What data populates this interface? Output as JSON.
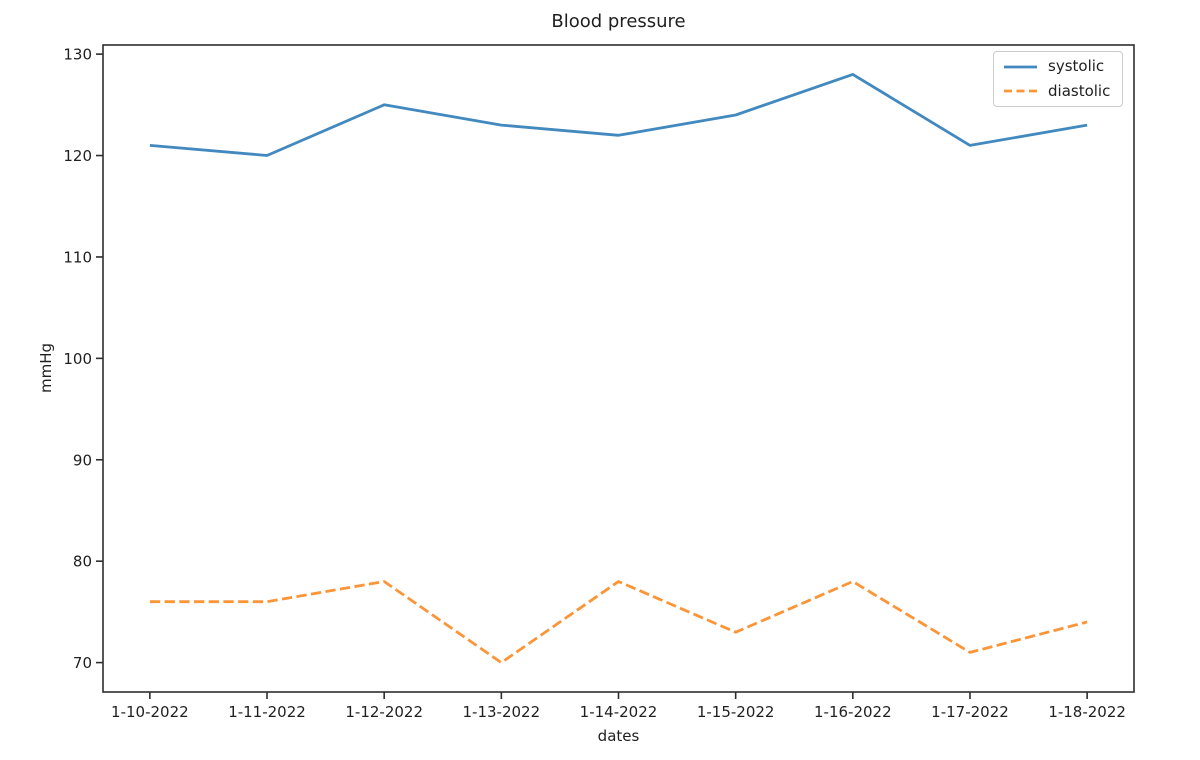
{
  "chart_data": {
    "type": "line",
    "title": "Blood pressure",
    "xlabel": "dates",
    "ylabel": "mmHg",
    "categories": [
      "1-10-2022",
      "1-11-2022",
      "1-12-2022",
      "1-13-2022",
      "1-14-2022",
      "1-15-2022",
      "1-16-2022",
      "1-17-2022",
      "1-18-2022"
    ],
    "series": [
      {
        "name": "systolic",
        "values": [
          121,
          120,
          125,
          123,
          122,
          124,
          128,
          121,
          123
        ],
        "color": "#4289bf",
        "line_style": "solid"
      },
      {
        "name": "diastolic",
        "values": [
          76,
          76,
          78,
          70,
          78,
          73,
          78,
          71,
          74
        ],
        "color": "#fb9538",
        "line_style": "dashed"
      }
    ],
    "yticks": [
      70,
      80,
      90,
      100,
      110,
      120,
      130
    ],
    "ylim": [
      67.1,
      130.9
    ],
    "grid": false,
    "legend_position": "upper-right",
    "colors": {
      "text": "#1f1f1f",
      "spine": "#2e2e2e",
      "legend_border": "#cccccc",
      "legend_background": "#ffffff",
      "background": "#ffffff"
    }
  }
}
